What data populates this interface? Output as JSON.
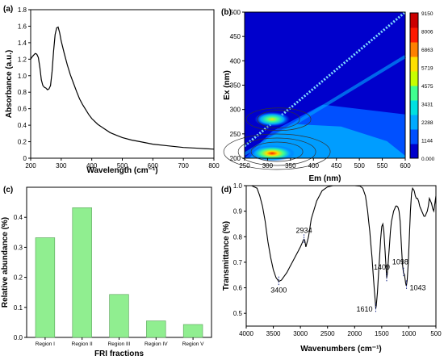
{
  "chart_data": [
    {
      "panel": "(a)",
      "type": "line",
      "xlabel": "Wavelength (cm⁻¹)",
      "ylabel": "Absorbance (a.u.)",
      "xlim": [
        200,
        800
      ],
      "ylim": [
        0,
        1.8
      ],
      "xticks": [
        "200",
        "300",
        "400",
        "500",
        "600",
        "700",
        "800"
      ],
      "yticks": [
        "0",
        "0.2",
        "0.4",
        "0.6",
        "0.8",
        "1.0",
        "1.2",
        "1.4",
        "1.6",
        "1.8"
      ],
      "series": [
        {
          "x": [
            200,
            205,
            210,
            215,
            220,
            225,
            230,
            235,
            240,
            245,
            250,
            255,
            260,
            265,
            270,
            275,
            280,
            285,
            290,
            295,
            300,
            310,
            320,
            330,
            340,
            350,
            360,
            370,
            380,
            390,
            400,
            420,
            440,
            460,
            480,
            500,
            530,
            560,
            600,
            650,
            700,
            750,
            800
          ],
          "y": [
            1.2,
            1.23,
            1.25,
            1.27,
            1.26,
            1.22,
            1.1,
            0.95,
            0.88,
            0.86,
            0.85,
            0.83,
            0.84,
            0.88,
            1.05,
            1.3,
            1.5,
            1.58,
            1.59,
            1.52,
            1.42,
            1.27,
            1.13,
            1.01,
            0.91,
            0.81,
            0.72,
            0.65,
            0.59,
            0.53,
            0.48,
            0.41,
            0.36,
            0.31,
            0.28,
            0.25,
            0.22,
            0.2,
            0.17,
            0.15,
            0.13,
            0.12,
            0.11
          ]
        }
      ]
    },
    {
      "panel": "(b)",
      "type": "heatmap",
      "xlabel": "Em (nm)",
      "ylabel": "Ex (nm)",
      "xlim": [
        250,
        600
      ],
      "ylim": [
        200,
        500
      ],
      "xticks": [
        "250",
        "300",
        "350",
        "400",
        "450",
        "500",
        "550",
        "600"
      ],
      "yticks": [
        "200",
        "250",
        "300",
        "350",
        "400",
        "450",
        "500"
      ],
      "colorbar_ticks": [
        "0.000",
        "1144",
        "2288",
        "3431",
        "4575",
        "5719",
        "6863",
        "8006",
        "9150"
      ],
      "colors": [
        "#0000cc",
        "#0050ff",
        "#00aaff",
        "#00e0e0",
        "#40ff90",
        "#c8ff00",
        "#ffe000",
        "#ff8000",
        "#ff1a00",
        "#cc0000"
      ],
      "peaks": [
        {
          "em": 310,
          "ex": 210,
          "value": 9150
        },
        {
          "em": 310,
          "ex": 280,
          "value": 5719
        }
      ]
    },
    {
      "panel": "(c)",
      "type": "bar",
      "xlabel": "FRI fractions",
      "ylabel": "Relative abundance (%)",
      "categories": [
        "Region I",
        "Region II",
        "Region III",
        "Region IV",
        "Region V"
      ],
      "values": [
        0.332,
        0.432,
        0.143,
        0.055,
        0.043
      ],
      "ylim": [
        0,
        0.5
      ],
      "yticks": [
        "0.0",
        "0.1",
        "0.2",
        "0.3",
        "0.4"
      ],
      "bar_color": "#90ee90"
    },
    {
      "panel": "(d)",
      "type": "line",
      "xlabel": "Wavenumbers (cm⁻¹)",
      "ylabel": "Transmittance (%)",
      "xlim": [
        4000,
        500
      ],
      "ylim": [
        0.45,
        1.0
      ],
      "xticks": [
        "4000",
        "3500",
        "3000",
        "2500",
        "2000",
        "1500",
        "1000",
        "500"
      ],
      "yticks": [
        "0.5",
        "0.6",
        "0.7",
        "0.8",
        "0.9",
        "1.0"
      ],
      "annotations": [
        {
          "text": "3400",
          "x": 3400,
          "y": 0.625
        },
        {
          "text": "2934",
          "x": 2934,
          "y": 0.79
        },
        {
          "text": "1610",
          "x": 1610,
          "y": 0.52
        },
        {
          "text": "1409",
          "x": 1409,
          "y": 0.64
        },
        {
          "text": "1098",
          "x": 1098,
          "y": 0.66
        },
        {
          "text": "1043",
          "x": 1043,
          "y": 0.61
        }
      ],
      "series": [
        {
          "x": [
            4000,
            3900,
            3800,
            3750,
            3700,
            3650,
            3600,
            3550,
            3500,
            3450,
            3400,
            3350,
            3300,
            3250,
            3200,
            3150,
            3100,
            3050,
            3000,
            2970,
            2950,
            2934,
            2920,
            2900,
            2850,
            2800,
            2700,
            2600,
            2500,
            2400,
            2200,
            2000,
            1900,
            1850,
            1800,
            1780,
            1760,
            1740,
            1720,
            1700,
            1680,
            1660,
            1640,
            1620,
            1610,
            1600,
            1580,
            1560,
            1540,
            1520,
            1500,
            1480,
            1460,
            1440,
            1420,
            1409,
            1400,
            1380,
            1360,
            1340,
            1320,
            1300,
            1280,
            1260,
            1240,
            1220,
            1200,
            1180,
            1160,
            1140,
            1120,
            1110,
            1098,
            1080,
            1060,
            1050,
            1043,
            1030,
            1010,
            990,
            970,
            950,
            930,
            900,
            880,
            860,
            840,
            820,
            800,
            780,
            760,
            740,
            720,
            700,
            680,
            660,
            640,
            620,
            600,
            580,
            560,
            540,
            520,
            500
          ],
          "y": [
            1.0,
            1.0,
            0.99,
            0.96,
            0.92,
            0.86,
            0.78,
            0.72,
            0.67,
            0.64,
            0.625,
            0.63,
            0.645,
            0.66,
            0.68,
            0.7,
            0.72,
            0.74,
            0.76,
            0.775,
            0.785,
            0.79,
            0.785,
            0.76,
            0.8,
            0.87,
            0.94,
            0.98,
            0.995,
            1.0,
            1.0,
            1.0,
            0.998,
            0.99,
            0.96,
            0.93,
            0.9,
            0.86,
            0.82,
            0.77,
            0.72,
            0.66,
            0.6,
            0.55,
            0.52,
            0.53,
            0.58,
            0.65,
            0.72,
            0.79,
            0.84,
            0.85,
            0.82,
            0.75,
            0.68,
            0.64,
            0.65,
            0.7,
            0.76,
            0.82,
            0.86,
            0.88,
            0.9,
            0.91,
            0.92,
            0.92,
            0.915,
            0.9,
            0.86,
            0.78,
            0.7,
            0.68,
            0.66,
            0.65,
            0.62,
            0.61,
            0.61,
            0.63,
            0.7,
            0.8,
            0.9,
            0.97,
            0.99,
            0.98,
            0.96,
            0.95,
            0.95,
            0.94,
            0.92,
            0.91,
            0.9,
            0.89,
            0.88,
            0.88,
            0.89,
            0.9,
            0.92,
            0.95,
            0.94,
            0.93,
            0.91,
            0.9,
            0.93,
            0.96
          ]
        }
      ]
    }
  ]
}
